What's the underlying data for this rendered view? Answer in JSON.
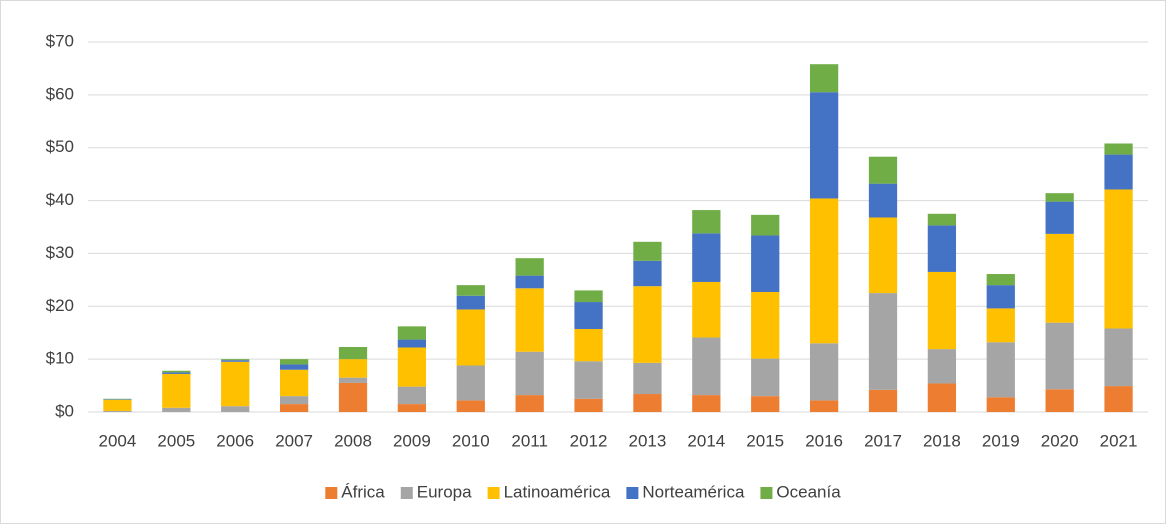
{
  "chart_data": {
    "type": "stacked-bar",
    "categories": [
      "2004",
      "2005",
      "2006",
      "2007",
      "2008",
      "2009",
      "2010",
      "2011",
      "2012",
      "2013",
      "2014",
      "2015",
      "2016",
      "2017",
      "2018",
      "2019",
      "2020",
      "2021"
    ],
    "series": [
      {
        "name": "África",
        "color": "#ed7d31",
        "values": [
          0,
          0,
          0,
          1.5,
          5.5,
          1.5,
          2.2,
          3.2,
          2.5,
          3.4,
          3.2,
          3,
          2.2,
          4.2,
          5.4,
          2.8,
          4.3,
          4.9
        ]
      },
      {
        "name": "Europa",
        "color": "#a5a5a5",
        "values": [
          0.2,
          0.8,
          1.1,
          1.5,
          1,
          3.3,
          6.6,
          8.2,
          7.1,
          5.9,
          10.9,
          7.1,
          10.8,
          18.3,
          6.5,
          10.4,
          12.6,
          10.9
        ]
      },
      {
        "name": "Latinoamérica",
        "color": "#ffc000",
        "values": [
          2.1,
          6.4,
          8.4,
          5,
          3.5,
          7.4,
          10.6,
          12,
          6.1,
          14.5,
          10.5,
          12.6,
          27.4,
          14.3,
          14.6,
          6.4,
          16.8,
          26.3
        ]
      },
      {
        "name": "Norteamérica",
        "color": "#4472c4",
        "values": [
          0.1,
          0.3,
          0.3,
          1,
          0,
          1.5,
          2.6,
          2.4,
          5.1,
          4.8,
          9.2,
          10.7,
          20.1,
          6.4,
          8.8,
          4.4,
          6.1,
          6.6
        ]
      },
      {
        "name": "Oceanía",
        "color": "#70ad47",
        "values": [
          0.1,
          0.3,
          0.2,
          1,
          2.3,
          2.5,
          2,
          3.3,
          2.2,
          3.6,
          4.4,
          3.9,
          5.3,
          5.1,
          2.2,
          2.1,
          1.6,
          2.1
        ]
      }
    ],
    "ylim": [
      0,
      70
    ],
    "yticks": [
      {
        "value": 0,
        "label": "$0"
      },
      {
        "value": 10,
        "label": "$10"
      },
      {
        "value": 20,
        "label": "$20"
      },
      {
        "value": 30,
        "label": "$30"
      },
      {
        "value": 40,
        "label": "$40"
      },
      {
        "value": 50,
        "label": "$50"
      },
      {
        "value": 60,
        "label": "$60"
      },
      {
        "value": 70,
        "label": "$70"
      }
    ],
    "grid": true,
    "legend": "bottom"
  }
}
